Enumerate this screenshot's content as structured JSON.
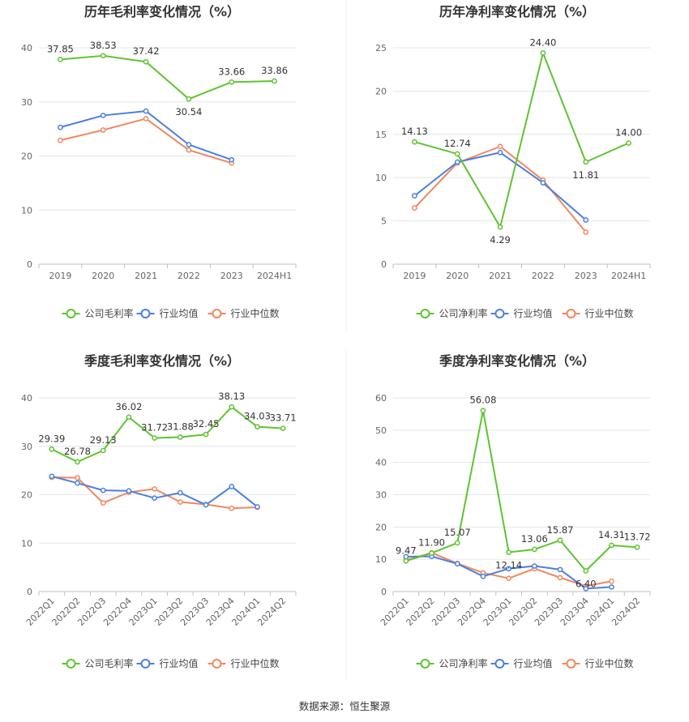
{
  "colors": {
    "company": "#5ec42f",
    "avg": "#4a7fe0",
    "median": "#f0875e",
    "grid": "#e6e6e6",
    "axis": "#bfbfbf"
  },
  "source": "数据来源：恒生聚源",
  "chart_data": [
    {
      "type": "line",
      "title": "历年毛利率变化情况（%）",
      "categories": [
        "2019",
        "2020",
        "2021",
        "2022",
        "2023",
        "2024H1"
      ],
      "ylim": [
        0,
        40
      ],
      "yticks": [
        0,
        10,
        20,
        30,
        40
      ],
      "rotate_labels": false,
      "series": [
        {
          "name": "公司毛利率",
          "values": [
            37.85,
            38.53,
            37.42,
            30.54,
            33.66,
            33.86
          ],
          "show_labels": true
        },
        {
          "name": "行业均值",
          "values": [
            25.3,
            27.5,
            28.3,
            22.1,
            19.3,
            null
          ],
          "show_labels": false
        },
        {
          "name": "行业中位数",
          "values": [
            22.9,
            24.8,
            26.9,
            21.1,
            18.7,
            null
          ],
          "show_labels": false
        }
      ]
    },
    {
      "type": "line",
      "title": "历年净利率变化情况（%）",
      "categories": [
        "2019",
        "2020",
        "2021",
        "2022",
        "2023",
        "2024H1"
      ],
      "ylim": [
        0,
        25
      ],
      "yticks": [
        0,
        5,
        10,
        15,
        20,
        25
      ],
      "rotate_labels": false,
      "series": [
        {
          "name": "公司净利率",
          "values": [
            14.13,
            12.74,
            4.29,
            24.4,
            11.81,
            14.0
          ],
          "show_labels": true
        },
        {
          "name": "行业均值",
          "values": [
            7.9,
            11.8,
            12.9,
            9.4,
            5.1,
            null
          ],
          "show_labels": false
        },
        {
          "name": "行业中位数",
          "values": [
            6.5,
            11.7,
            13.6,
            9.7,
            3.7,
            null
          ],
          "show_labels": false
        }
      ]
    },
    {
      "type": "line",
      "title": "季度毛利率变化情况（%）",
      "categories": [
        "2022Q1",
        "2022Q2",
        "2022Q3",
        "2022Q4",
        "2023Q1",
        "2023Q2",
        "2023Q3",
        "2023Q4",
        "2024Q1",
        "2024Q2"
      ],
      "ylim": [
        0,
        40
      ],
      "yticks": [
        0,
        10,
        20,
        30,
        40
      ],
      "rotate_labels": true,
      "series": [
        {
          "name": "公司毛利率",
          "values": [
            29.39,
            26.78,
            29.13,
            36.02,
            31.72,
            31.88,
            32.45,
            38.13,
            34.03,
            33.71
          ],
          "show_labels": true
        },
        {
          "name": "行业均值",
          "values": [
            23.8,
            22.4,
            20.9,
            20.8,
            19.3,
            20.4,
            17.9,
            21.7,
            17.5,
            null
          ],
          "show_labels": false
        },
        {
          "name": "行业中位数",
          "values": [
            23.6,
            23.5,
            18.3,
            20.5,
            21.2,
            18.5,
            18.0,
            17.2,
            17.4,
            null
          ],
          "show_labels": false
        }
      ]
    },
    {
      "type": "line",
      "title": "季度净利率变化情况（%）",
      "categories": [
        "2022Q1",
        "2022Q2",
        "2022Q3",
        "2022Q4",
        "2023Q1",
        "2023Q2",
        "2023Q3",
        "2023Q4",
        "2024Q1",
        "2024Q2"
      ],
      "ylim": [
        0,
        60
      ],
      "yticks": [
        0,
        10,
        20,
        30,
        40,
        50,
        60
      ],
      "rotate_labels": true,
      "series": [
        {
          "name": "公司净利率",
          "values": [
            9.47,
            11.9,
            15.07,
            56.08,
            12.14,
            13.06,
            15.87,
            6.4,
            14.31,
            13.72
          ],
          "show_labels": true
        },
        {
          "name": "行业均值",
          "values": [
            10.8,
            10.9,
            8.6,
            4.7,
            7.1,
            7.9,
            6.8,
            0.9,
            1.4,
            null
          ],
          "show_labels": false
        },
        {
          "name": "行业中位数",
          "values": [
            9.7,
            12.0,
            8.7,
            5.8,
            4.1,
            7.1,
            4.3,
            1.7,
            3.2,
            null
          ],
          "show_labels": false
        }
      ]
    }
  ]
}
